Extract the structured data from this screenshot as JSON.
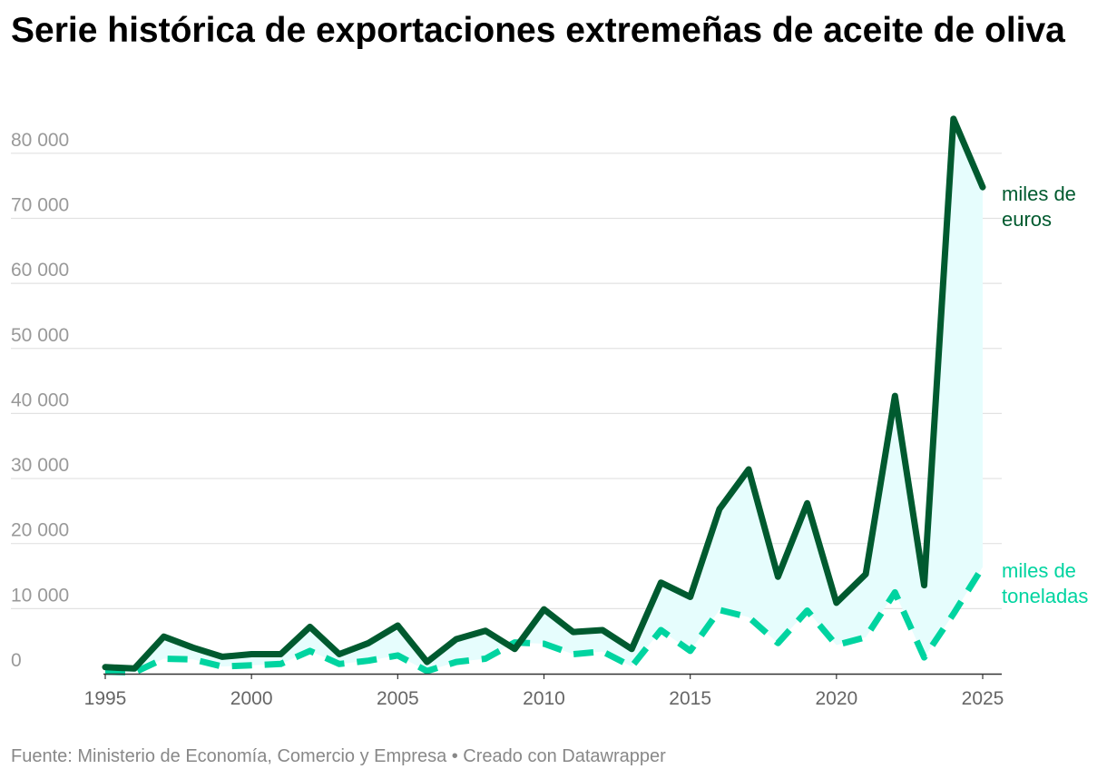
{
  "title": "Serie histórica de exportaciones extremeñas de aceite de oliva",
  "footer": "Fuente: Ministerio de Economía, Comercio y Empresa • Creado con Datawrapper",
  "colors": {
    "euros": "#005a2f",
    "toneladas": "#00d4a0",
    "area": "#e6fdfd",
    "grid": "#e2e2e2",
    "axis": "#333333"
  },
  "chart_data": {
    "type": "line",
    "title": "Serie histórica de exportaciones extremeñas de aceite de oliva",
    "xlabel": "",
    "ylabel": "",
    "xlim": [
      1995,
      2025
    ],
    "ylim": [
      0,
      85000
    ],
    "grid": true,
    "x_ticks": [
      "1995",
      "2000",
      "2005",
      "2010",
      "2015",
      "2020",
      "2025"
    ],
    "y_ticks": [
      {
        "value": 0,
        "label": "0"
      },
      {
        "value": 10000,
        "label": "10 000"
      },
      {
        "value": 20000,
        "label": "20 000"
      },
      {
        "value": 30000,
        "label": "30 000"
      },
      {
        "value": 40000,
        "label": "40 000"
      },
      {
        "value": 50000,
        "label": "50 000"
      },
      {
        "value": 60000,
        "label": "60 000"
      },
      {
        "value": 70000,
        "label": "70 000"
      },
      {
        "value": 80000,
        "label": "80 000"
      }
    ],
    "x": [
      1995,
      1996,
      1997,
      1998,
      1999,
      2000,
      2001,
      2002,
      2003,
      2004,
      2005,
      2006,
      2007,
      2008,
      2009,
      2010,
      2011,
      2012,
      2013,
      2014,
      2015,
      2016,
      2017,
      2018,
      2019,
      2020,
      2021,
      2022,
      2023,
      2024,
      2025
    ],
    "series": [
      {
        "name": "miles de euros",
        "label_lines": [
          "miles de",
          "euros"
        ],
        "style": "solid",
        "values": [
          1000,
          800,
          5700,
          4000,
          2600,
          3000,
          3000,
          7200,
          3000,
          4700,
          7400,
          1800,
          5300,
          6600,
          3800,
          9900,
          6400,
          6700,
          3800,
          14000,
          11800,
          25300,
          31400,
          14900,
          26200,
          10900,
          15300,
          42700,
          13600,
          85300,
          74800
        ]
      },
      {
        "name": "miles de toneladas",
        "label_lines": [
          "miles de",
          "toneladas"
        ],
        "style": "dashed",
        "values": [
          300,
          200,
          2300,
          2200,
          1100,
          1300,
          1500,
          3500,
          1500,
          2000,
          2800,
          400,
          1800,
          2300,
          4800,
          4600,
          3000,
          3400,
          1100,
          6700,
          3500,
          9800,
          8700,
          4700,
          9700,
          4400,
          5600,
          12500,
          2500,
          9200,
          16400
        ]
      }
    ]
  }
}
